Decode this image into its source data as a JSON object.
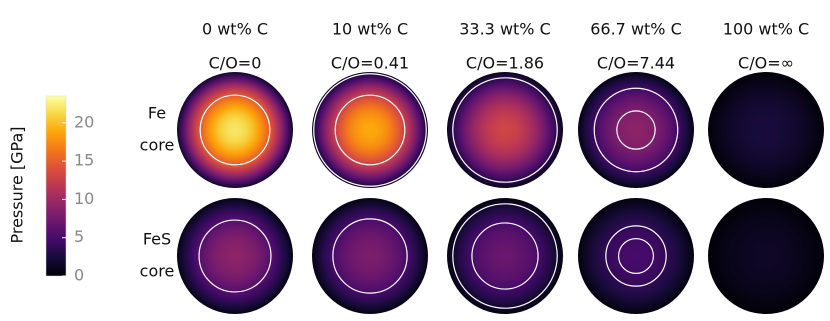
{
  "colorbar": {
    "label": "Pressure [GPa]",
    "range": [
      0,
      23.5
    ],
    "ticks": [
      0,
      5,
      10,
      15,
      20
    ]
  },
  "columns": [
    {
      "composition": "0 wt% C",
      "ratio": "C/O=0"
    },
    {
      "composition": "10 wt% C",
      "ratio": "C/O=0.41"
    },
    {
      "composition": "33.3 wt% C",
      "ratio": "C/O=1.86"
    },
    {
      "composition": "66.7 wt% C",
      "ratio": "C/O=7.44"
    },
    {
      "composition": "100 wt% C",
      "ratio": "C/O=∞"
    }
  ],
  "rows": [
    {
      "line1": "Fe",
      "line2": "core",
      "center_pressure": [
        22,
        19,
        13,
        9,
        2.5
      ],
      "boundaries": [
        [
          0.6
        ],
        [
          0.97,
          0.6
        ],
        [
          0.9
        ],
        [
          0.72,
          0.33
        ],
        []
      ]
    },
    {
      "line1": "FeS",
      "line2": "core",
      "center_pressure": [
        9,
        8,
        7,
        5,
        1.5
      ],
      "boundaries": [
        [
          0.62
        ],
        [
          0.64
        ],
        [
          0.9,
          0.57
        ],
        [
          0.52,
          0.3
        ],
        []
      ]
    }
  ]
}
